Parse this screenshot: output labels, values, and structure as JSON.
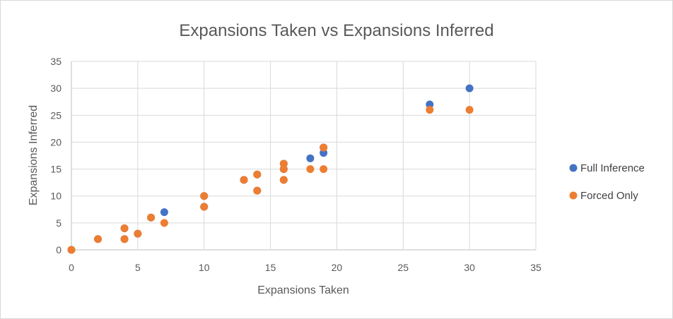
{
  "chart_data": {
    "type": "scatter",
    "title": "Expansions Taken vs Expansions Inferred",
    "xlabel": "Expansions Taken",
    "ylabel": "Expansions Inferred",
    "xlim": [
      0,
      35
    ],
    "ylim": [
      0,
      35
    ],
    "xticks": [
      0,
      5,
      10,
      15,
      20,
      25,
      30,
      35
    ],
    "yticks": [
      0,
      5,
      10,
      15,
      20,
      25,
      30,
      35
    ],
    "grid": true,
    "legend_position": "right",
    "series": [
      {
        "name": "Full Inference",
        "color": "#4472c4",
        "points": [
          [
            0,
            0
          ],
          [
            2,
            2
          ],
          [
            4,
            4
          ],
          [
            4,
            2
          ],
          [
            5,
            3
          ],
          [
            6,
            6
          ],
          [
            7,
            7
          ],
          [
            10,
            10
          ],
          [
            10,
            8
          ],
          [
            13,
            13
          ],
          [
            14,
            14
          ],
          [
            14,
            11
          ],
          [
            16,
            16
          ],
          [
            16,
            15
          ],
          [
            16,
            13
          ],
          [
            18,
            17
          ],
          [
            19,
            19
          ],
          [
            19,
            18
          ],
          [
            27,
            27
          ],
          [
            30,
            30
          ]
        ]
      },
      {
        "name": "Forced Only",
        "color": "#ed7d31",
        "points": [
          [
            0,
            0
          ],
          [
            2,
            2
          ],
          [
            4,
            4
          ],
          [
            4,
            2
          ],
          [
            5,
            3
          ],
          [
            6,
            6
          ],
          [
            7,
            5
          ],
          [
            10,
            10
          ],
          [
            10,
            8
          ],
          [
            13,
            13
          ],
          [
            14,
            14
          ],
          [
            14,
            11
          ],
          [
            16,
            16
          ],
          [
            16,
            15
          ],
          [
            16,
            13
          ],
          [
            18,
            15
          ],
          [
            19,
            19
          ],
          [
            19,
            15
          ],
          [
            27,
            26
          ],
          [
            30,
            26
          ]
        ]
      }
    ]
  }
}
